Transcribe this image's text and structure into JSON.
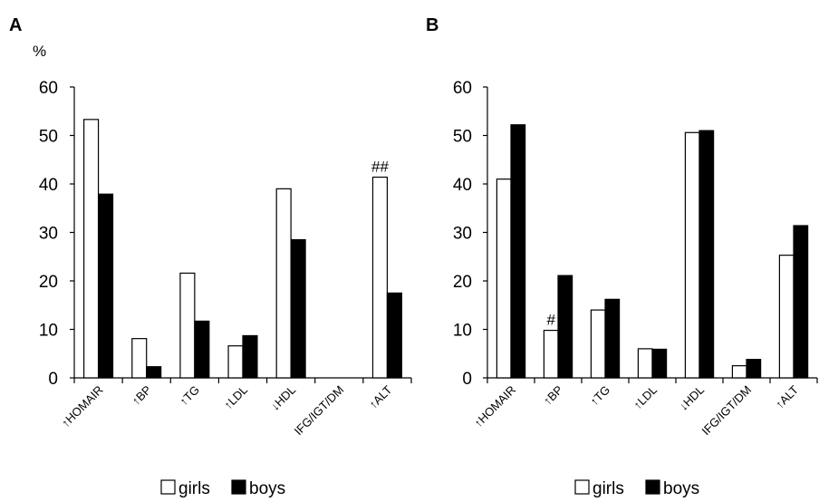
{
  "chart_data": [
    {
      "type": "bar",
      "panel_label": "A",
      "ylabel": "%",
      "ylim": [
        0,
        60
      ],
      "yticks": [
        0,
        10,
        20,
        30,
        40,
        50,
        60
      ],
      "grid": false,
      "categories": [
        "↑HOMAIR",
        "↑BP",
        "↑TG",
        "↑LDL",
        "↓HDL",
        "IFG/IGT/DM",
        "↑ALT"
      ],
      "series": [
        {
          "name": "girls",
          "color": "#ffffff",
          "values": [
            53.3,
            8.1,
            21.6,
            6.6,
            39.0,
            0,
            41.4
          ]
        },
        {
          "name": "boys",
          "color": "#000000",
          "values": [
            37.9,
            2.3,
            11.7,
            8.7,
            28.5,
            0,
            17.5
          ]
        }
      ],
      "annotations": [
        {
          "text": "##",
          "category_index": 6
        }
      ],
      "legend": {
        "position": "bottom",
        "items": [
          "girls",
          "boys"
        ]
      }
    },
    {
      "type": "bar",
      "panel_label": "B",
      "ylabel": "",
      "ylim": [
        0,
        60
      ],
      "yticks": [
        0,
        10,
        20,
        30,
        40,
        50,
        60
      ],
      "grid": false,
      "categories": [
        "↑HOMAIR",
        "↑BP",
        "↑TG",
        "↑LDL",
        "↓HDL",
        "IFG/IGT/DM",
        "↑ALT"
      ],
      "series": [
        {
          "name": "girls",
          "color": "#ffffff",
          "values": [
            41.0,
            9.8,
            14.0,
            6.0,
            50.6,
            2.5,
            25.3
          ]
        },
        {
          "name": "boys",
          "color": "#000000",
          "values": [
            52.2,
            21.1,
            16.2,
            5.9,
            51.0,
            3.8,
            31.4
          ]
        }
      ],
      "annotations": [
        {
          "text": "#",
          "category_index": 1
        }
      ],
      "legend": {
        "position": "bottom",
        "items": [
          "girls",
          "boys"
        ]
      }
    }
  ]
}
